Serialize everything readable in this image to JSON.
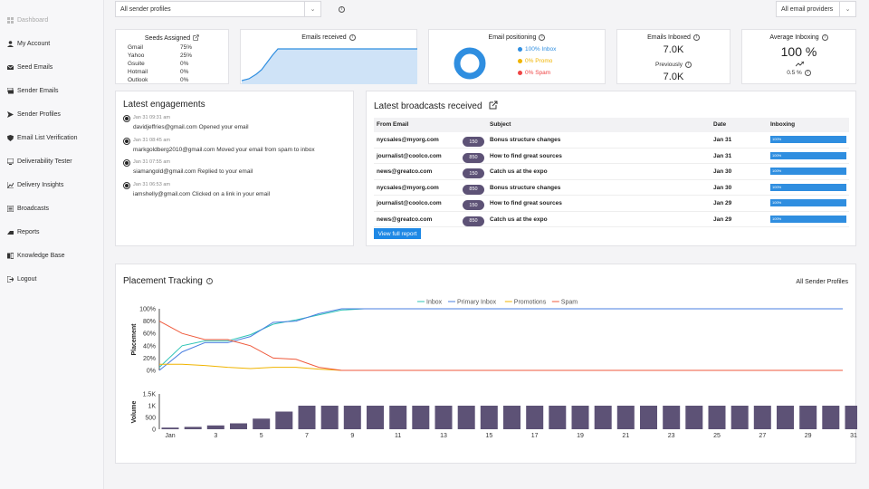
{
  "sidebar": {
    "items": [
      {
        "label": "Dashboard",
        "icon": "grid-icon",
        "muted": true
      },
      {
        "label": "My Account",
        "icon": "user-icon"
      },
      {
        "label": "Seed Emails",
        "icon": "mail-icon"
      },
      {
        "label": "Sender Emails",
        "icon": "mail-stack-icon"
      },
      {
        "label": "Sender Profiles",
        "icon": "send-icon"
      },
      {
        "label": "Email List Verification",
        "icon": "shield-check-icon"
      },
      {
        "label": "Deliverability Tester",
        "icon": "monitor-icon"
      },
      {
        "label": "Delivery Insights",
        "icon": "chart-icon"
      },
      {
        "label": "Broadcasts",
        "icon": "broadcast-icon"
      },
      {
        "label": "Reports",
        "icon": "report-icon"
      },
      {
        "label": "Knowledge Base",
        "icon": "book-icon"
      },
      {
        "label": "Logout",
        "icon": "logout-icon"
      }
    ]
  },
  "filters": {
    "sender_profiles": "All sender profiles",
    "email_providers": "All email providers"
  },
  "seeds": {
    "title": "Seeds Assigned",
    "rows": [
      {
        "name": "Gmail",
        "pct": "75%"
      },
      {
        "name": "Yahoo",
        "pct": "25%"
      },
      {
        "name": "Gsuite",
        "pct": "0%"
      },
      {
        "name": "Hotmail",
        "pct": "0%"
      },
      {
        "name": "Outlook",
        "pct": "0%"
      }
    ]
  },
  "emails_received": {
    "title": "Emails received",
    "color": "#2f8ee0"
  },
  "positioning": {
    "title": "Email positioning",
    "legend": [
      {
        "label": "100% Inbox",
        "color": "#2f8ee0"
      },
      {
        "label": "0% Promo",
        "color": "#f0b400"
      },
      {
        "label": "0% Spam",
        "color": "#ef4444"
      }
    ],
    "inbox_fraction": 1.0
  },
  "inboxed": {
    "title": "Emails Inboxed",
    "value": "7.0K",
    "previously_label": "Previously",
    "previous_value": "7.0K"
  },
  "avg_inboxing": {
    "title": "Average Inboxing",
    "value": "100 %",
    "trend_icon": "trend-up-icon",
    "change": "0.5 %"
  },
  "engagements": {
    "title": "Latest engagements",
    "items": [
      {
        "time": "Jan 31 09:31 am",
        "text": "davidjeffries@gmail.com Opened your email"
      },
      {
        "time": "Jan 31 08:45 am",
        "text": "markgoldberg2010@gmail.com Moved your email from spam to inbox"
      },
      {
        "time": "Jan 31 07:55 am",
        "text": "siamangold@gmail.com Replied to your email"
      },
      {
        "time": "Jan 31 06:53 am",
        "text": "iamshelly@gmail.com Clicked on a link in your email"
      }
    ]
  },
  "broadcasts": {
    "title": "Latest broadcasts received",
    "columns": {
      "from": "From Email",
      "subject": "Subject",
      "date": "Date",
      "inboxing": "Inboxing"
    },
    "rows": [
      {
        "from": "nycsales@myorg.com",
        "count": "150",
        "subject": "Bonus structure changes",
        "date": "Jan 31",
        "inboxing": "100%",
        "fraction": 1.0
      },
      {
        "from": "journalist@coolco.com",
        "count": "850",
        "subject": "How to find great sources",
        "date": "Jan 31",
        "inboxing": "100%",
        "fraction": 1.0
      },
      {
        "from": "news@greatco.com",
        "count": "150",
        "subject": "Catch us at the expo",
        "date": "Jan 30",
        "inboxing": "100%",
        "fraction": 1.0
      },
      {
        "from": "nycsales@myorg.com",
        "count": "850",
        "subject": "Bonus structure changes",
        "date": "Jan 30",
        "inboxing": "100%",
        "fraction": 1.0
      },
      {
        "from": "journalist@coolco.com",
        "count": "150",
        "subject": "How to find great sources",
        "date": "Jan 29",
        "inboxing": "100%",
        "fraction": 1.0
      },
      {
        "from": "news@greatco.com",
        "count": "850",
        "subject": "Catch us at the expo",
        "date": "Jan 29",
        "inboxing": "100%",
        "fraction": 1.0
      }
    ],
    "report_button": "View full report"
  },
  "placement": {
    "title": "Placement Tracking",
    "scope": "All Sender Profiles"
  },
  "chart_data": [
    {
      "type": "line",
      "title": "",
      "ylabel": "Placement",
      "x_ticks": [
        "Jan",
        "3",
        "5",
        "7",
        "9",
        "11",
        "13",
        "15",
        "17",
        "19",
        "21",
        "23",
        "25",
        "27",
        "29",
        "31"
      ],
      "y_ticks": [
        "0%",
        "20%",
        "40%",
        "60%",
        "80%",
        "100%"
      ],
      "ylim": [
        0,
        100
      ],
      "x": [
        1,
        2,
        3,
        4,
        5,
        6,
        7,
        8,
        9,
        10,
        11,
        12,
        13,
        14,
        15,
        16,
        17,
        18,
        19,
        20,
        21,
        22,
        23,
        24,
        25,
        26,
        27,
        28,
        29,
        30,
        31
      ],
      "legend_position": "top-center",
      "series": [
        {
          "name": "Inbox",
          "color": "#2ec4b6",
          "values": [
            5,
            40,
            48,
            48,
            58,
            75,
            82,
            90,
            98,
            100,
            100,
            100,
            100,
            100,
            100,
            100,
            100,
            100,
            100,
            100,
            100,
            100,
            100,
            100,
            100,
            100,
            100,
            100,
            100,
            100,
            100
          ]
        },
        {
          "name": "Primary Inbox",
          "color": "#4a7fe0",
          "values": [
            0,
            30,
            45,
            45,
            55,
            78,
            80,
            92,
            100,
            100,
            100,
            100,
            100,
            100,
            100,
            100,
            100,
            100,
            100,
            100,
            100,
            100,
            100,
            100,
            100,
            100,
            100,
            100,
            100,
            100,
            100
          ]
        },
        {
          "name": "Promotions",
          "color": "#f0b400",
          "values": [
            10,
            10,
            8,
            5,
            3,
            5,
            5,
            2,
            0,
            0,
            0,
            0,
            0,
            0,
            0,
            0,
            0,
            0,
            0,
            0,
            0,
            0,
            0,
            0,
            0,
            0,
            0,
            0,
            0,
            0,
            0
          ]
        },
        {
          "name": "Spam",
          "color": "#ef5a3c",
          "values": [
            80,
            60,
            50,
            50,
            40,
            20,
            18,
            5,
            0,
            0,
            0,
            0,
            0,
            0,
            0,
            0,
            0,
            0,
            0,
            0,
            0,
            0,
            0,
            0,
            0,
            0,
            0,
            0,
            0,
            0,
            0
          ]
        }
      ]
    },
    {
      "type": "bar",
      "title": "",
      "ylabel": "Volume",
      "y_ticks": [
        "0",
        "500",
        "1K",
        "1.5K"
      ],
      "ylim": [
        0,
        1500
      ],
      "x": [
        1,
        2,
        3,
        4,
        5,
        6,
        7,
        8,
        9,
        10,
        11,
        12,
        13,
        14,
        15,
        16,
        17,
        18,
        19,
        20,
        21,
        22,
        23,
        24,
        25,
        26,
        27,
        28,
        29,
        30,
        31
      ],
      "values": [
        70,
        100,
        160,
        250,
        450,
        750,
        1000,
        1000,
        1000,
        1000,
        1000,
        1000,
        1000,
        1000,
        1000,
        1000,
        1000,
        1000,
        1000,
        1000,
        1000,
        1000,
        1000,
        1000,
        1000,
        1000,
        1000,
        1000,
        1000,
        1000,
        1000
      ],
      "color": "#5d5276"
    }
  ]
}
